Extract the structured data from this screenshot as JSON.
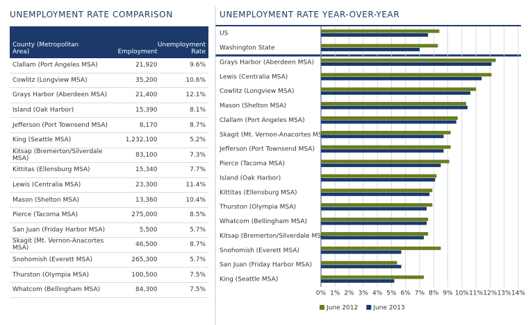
{
  "table": {
    "title": "UNEMPLOYMENT RATE COMPARISON",
    "columns": [
      "County (Metropolitan Area)",
      "Employment",
      "Unemployment Rate"
    ],
    "rows": [
      [
        "Clallam (Port Angeles MSA)",
        "21,920",
        "9.6%"
      ],
      [
        "Cowlitz (Longview MSA)",
        "35,200",
        "10.6%"
      ],
      [
        "Grays Harbor (Aberdeen MSA)",
        "21,400",
        "12.1%"
      ],
      [
        "Island (Oak Harbor)",
        "15,390",
        "8.1%"
      ],
      [
        "Jefferson (Port Townsend MSA)",
        "8,170",
        "8.7%"
      ],
      [
        "King (Seattle MSA)",
        "1,232,100",
        "5.2%"
      ],
      [
        "Kitsap (Bremerton/Silverdale MSA)",
        "83,100",
        "7.3%"
      ],
      [
        "Kittitas (Ellensburg MSA)",
        "15,340",
        "7.7%"
      ],
      [
        "Lewis (Centralia MSA)",
        "23,300",
        "11.4%"
      ],
      [
        "Mason (Shelton MSA)",
        "13,360",
        "10.4%"
      ],
      [
        "Pierce (Tacoma MSA)",
        "275,000",
        "8.5%"
      ],
      [
        "San Juan (Friday Harbor MSA)",
        "5,500",
        "5.7%"
      ],
      [
        "Skagit (Mt. Vernon-Anacortes MSA)",
        "46,500",
        "8.7%"
      ],
      [
        "Snohomish (Everett MSA)",
        "265,300",
        "5.7%"
      ],
      [
        "Thurston (Olympia MSA)",
        "100,500",
        "7.5%"
      ],
      [
        "Whatcom (Bellingham MSA)",
        "84,300",
        "7.5%"
      ]
    ]
  },
  "chart_data": {
    "type": "hbar",
    "title": "UNEMPLOYMENT RATE YEAR-OVER-YEAR",
    "categories": [
      "US",
      "Washington State",
      "Grays Harbor (Aberdeen MSA)",
      "Lewis (Centralia MSA)",
      "Cowlitz (Longview MSA)",
      "Mason (Shelton MSA)",
      "Clallam (Port Angeles MSA)",
      "Skagit (Mt. Vernon-Anacortes MSA)",
      "Jefferson (Port Townsend MSA)",
      "Pierce (Tacoma MSA)",
      "Island (Oak Harbor)",
      "Kittitas (Ellensburg MSA)",
      "Thurston (Olympia MSA)",
      "Whatcom (Bellingham MSA)",
      "Kitsap (Bremerton/Silverdale MSA)",
      "Snohomish (Everett MSA)",
      "San Juan (Friday Harbor MSA)",
      "King (Seattle MSA)"
    ],
    "series": [
      {
        "name": "June 2012",
        "color": "#687d1f",
        "values": [
          8.4,
          8.3,
          12.4,
          12.1,
          11.0,
          10.3,
          9.7,
          9.2,
          9.2,
          9.1,
          8.2,
          7.9,
          7.9,
          7.6,
          7.6,
          8.5,
          5.4,
          7.3
        ]
      },
      {
        "name": "June 2013",
        "color": "#1b3a6b",
        "values": [
          7.6,
          7.0,
          12.1,
          11.4,
          10.6,
          10.4,
          9.6,
          8.7,
          8.7,
          8.5,
          8.1,
          7.7,
          7.5,
          7.5,
          7.3,
          5.7,
          5.7,
          5.2
        ]
      }
    ],
    "xlim": [
      0,
      14
    ],
    "xticks": [
      {
        "value": 0,
        "label": "0%"
      },
      {
        "value": 1,
        "label": "1%"
      },
      {
        "value": 2,
        "label": "2%"
      },
      {
        "value": 3,
        "label": "3%"
      },
      {
        "value": 4,
        "label": "4%"
      },
      {
        "value": 5,
        "label": "5%"
      },
      {
        "value": 6,
        "label": "6%"
      },
      {
        "value": 7,
        "label": "7%"
      },
      {
        "value": 8,
        "label": "8%"
      },
      {
        "value": 9,
        "label": "9%"
      },
      {
        "value": 10,
        "label": "10%"
      },
      {
        "value": 11,
        "label": "11%"
      },
      {
        "value": 12,
        "label": "12%"
      },
      {
        "value": 13,
        "label": "13%"
      },
      {
        "value": 14,
        "label": "14%"
      }
    ],
    "grid": true,
    "legend": "bottom"
  }
}
